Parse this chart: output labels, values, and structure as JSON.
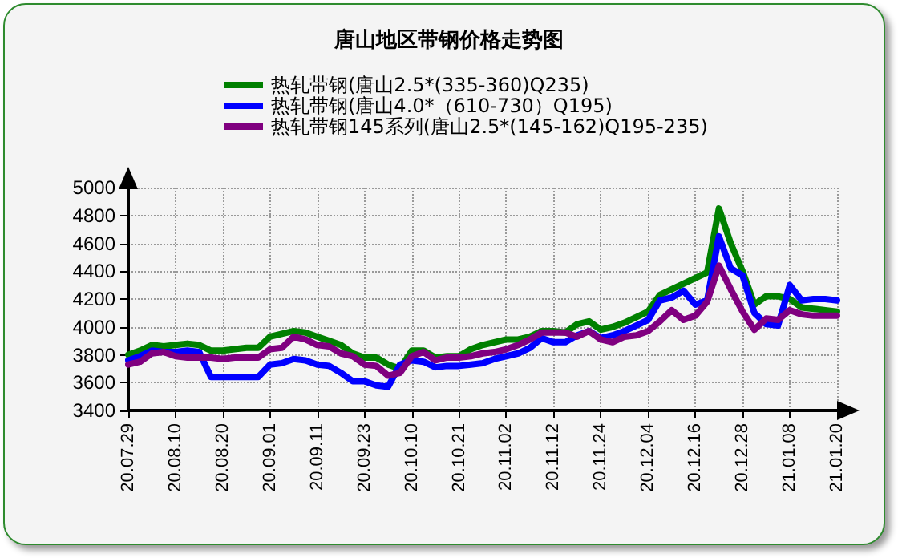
{
  "chart_data": {
    "type": "line",
    "title": "唐山地区带钢价格走势图",
    "categories": [
      "20.07.29",
      null,
      null,
      null,
      "20.08.10",
      null,
      null,
      null,
      "20.08.20",
      null,
      null,
      null,
      "20.09.01",
      null,
      null,
      null,
      "20.09.11",
      null,
      null,
      null,
      "20.09.23",
      null,
      null,
      null,
      "20.10.10",
      null,
      null,
      null,
      "20.10.21",
      null,
      null,
      null,
      "20.11.02",
      null,
      null,
      null,
      "20.11.12",
      null,
      null,
      null,
      "20.11.24",
      null,
      null,
      null,
      "20.12.04",
      null,
      null,
      null,
      "20.12.16",
      null,
      null,
      null,
      "20.12.28",
      null,
      null,
      null,
      "21.01.08",
      null,
      null,
      null,
      "21.01.20"
    ],
    "series": [
      {
        "name": "热轧带钢(唐山2.5*(335-360)Q235)",
        "color": "#008000",
        "values": [
          3800,
          3830,
          3870,
          3860,
          3870,
          3880,
          3870,
          3830,
          3830,
          3840,
          3850,
          3850,
          3930,
          3950,
          3970,
          3960,
          3930,
          3900,
          3870,
          3810,
          3780,
          3780,
          3730,
          3700,
          3830,
          3830,
          3780,
          3790,
          3790,
          3840,
          3870,
          3890,
          3910,
          3910,
          3930,
          3970,
          3970,
          3960,
          4020,
          4040,
          3980,
          4000,
          4030,
          4070,
          4110,
          4230,
          4270,
          4310,
          4350,
          4390,
          4850,
          4600,
          4400,
          4160,
          4220,
          4220,
          4200,
          4140,
          4130,
          4120,
          4110
        ]
      },
      {
        "name": "热轧带钢(唐山4.0*（610-730）Q195)",
        "color": "#0000ff",
        "values": [
          3760,
          3790,
          3830,
          3820,
          3820,
          3830,
          3820,
          3640,
          3640,
          3640,
          3640,
          3640,
          3730,
          3740,
          3770,
          3760,
          3730,
          3720,
          3670,
          3610,
          3610,
          3580,
          3570,
          3730,
          3760,
          3750,
          3710,
          3720,
          3720,
          3730,
          3740,
          3770,
          3790,
          3810,
          3850,
          3920,
          3890,
          3890,
          3940,
          3970,
          3920,
          3940,
          3970,
          4010,
          4050,
          4190,
          4210,
          4260,
          4160,
          4190,
          4650,
          4420,
          4370,
          4100,
          4020,
          4010,
          4300,
          4190,
          4200,
          4200,
          4190
        ]
      },
      {
        "name": "热轧带钢145系列(唐山2.5*(145-162)Q195-235)",
        "color": "#800080",
        "values": [
          3730,
          3750,
          3810,
          3820,
          3790,
          3780,
          3780,
          3780,
          3770,
          3780,
          3780,
          3780,
          3840,
          3850,
          3930,
          3910,
          3870,
          3860,
          3810,
          3790,
          3730,
          3720,
          3650,
          3670,
          3790,
          3820,
          3760,
          3780,
          3780,
          3790,
          3810,
          3820,
          3840,
          3870,
          3910,
          3960,
          3960,
          3960,
          3930,
          3970,
          3910,
          3890,
          3930,
          3940,
          3970,
          4040,
          4120,
          4050,
          4080,
          4180,
          4440,
          4270,
          4110,
          3980,
          4060,
          4050,
          4120,
          4090,
          4080,
          4080,
          4080
        ]
      }
    ],
    "ylim": [
      3400,
      5000
    ],
    "yticks": [
      3400,
      3600,
      3800,
      4000,
      4200,
      4400,
      4600,
      4800,
      5000
    ],
    "grid": true,
    "legend": "top",
    "marker": "none",
    "line_style": "solid"
  }
}
